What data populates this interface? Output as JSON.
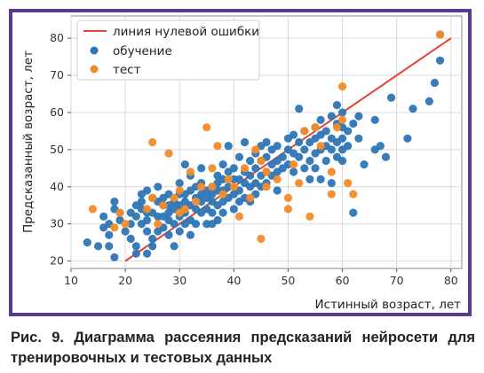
{
  "caption": "Рис. 9. Диаграмма рассеяния предсказаний нейросети для тренировочных и тестовых данных",
  "chart_data": {
    "type": "scatter",
    "xlabel": "Истинный возраст, лет",
    "ylabel": "Предсказанный возраст, лет",
    "xlim": [
      10,
      82
    ],
    "ylim": [
      18,
      86
    ],
    "xticks": [
      10,
      20,
      30,
      40,
      50,
      60,
      70,
      80
    ],
    "yticks": [
      20,
      30,
      40,
      50,
      60,
      70,
      80
    ],
    "grid": true,
    "legend_position": "top-left",
    "line": {
      "name": "линия нулевой ошибки",
      "color": "#e8412f",
      "x": [
        20,
        80
      ],
      "y": [
        20,
        80
      ]
    },
    "series": [
      {
        "name": "обучение",
        "color": "#2e75b6",
        "points": [
          [
            13,
            25
          ],
          [
            15,
            24
          ],
          [
            16,
            32
          ],
          [
            16,
            29
          ],
          [
            17,
            30
          ],
          [
            17,
            27
          ],
          [
            17,
            24
          ],
          [
            18,
            34
          ],
          [
            18,
            36
          ],
          [
            18,
            21
          ],
          [
            19,
            31
          ],
          [
            19,
            33
          ],
          [
            20,
            28
          ],
          [
            21,
            30
          ],
          [
            21,
            33
          ],
          [
            21,
            26
          ],
          [
            22,
            35
          ],
          [
            22,
            32
          ],
          [
            22,
            24
          ],
          [
            22,
            22
          ],
          [
            23,
            38
          ],
          [
            23,
            36
          ],
          [
            23,
            34
          ],
          [
            23,
            30
          ],
          [
            24,
            39
          ],
          [
            24,
            33
          ],
          [
            24,
            31
          ],
          [
            24,
            28
          ],
          [
            24,
            22
          ],
          [
            25,
            37
          ],
          [
            25,
            33
          ],
          [
            25,
            26
          ],
          [
            25,
            24
          ],
          [
            26,
            40
          ],
          [
            26,
            36
          ],
          [
            26,
            32
          ],
          [
            26,
            28
          ],
          [
            27,
            37
          ],
          [
            27,
            35
          ],
          [
            27,
            32
          ],
          [
            27,
            29
          ],
          [
            28,
            38
          ],
          [
            28,
            35
          ],
          [
            28,
            33
          ],
          [
            28,
            31
          ],
          [
            28,
            27
          ],
          [
            29,
            36
          ],
          [
            29,
            34
          ],
          [
            29,
            30
          ],
          [
            29,
            24
          ],
          [
            30,
            41
          ],
          [
            30,
            38
          ],
          [
            30,
            35
          ],
          [
            30,
            32
          ],
          [
            30,
            28
          ],
          [
            31,
            46
          ],
          [
            31,
            38
          ],
          [
            31,
            36
          ],
          [
            31,
            33
          ],
          [
            31,
            30
          ],
          [
            32,
            43
          ],
          [
            32,
            39
          ],
          [
            32,
            35
          ],
          [
            32,
            31
          ],
          [
            32,
            27
          ],
          [
            33,
            40
          ],
          [
            33,
            37
          ],
          [
            33,
            34
          ],
          [
            33,
            30
          ],
          [
            34,
            41
          ],
          [
            34,
            38
          ],
          [
            34,
            36
          ],
          [
            34,
            33
          ],
          [
            34,
            45
          ],
          [
            35,
            39
          ],
          [
            35,
            37
          ],
          [
            35,
            34
          ],
          [
            35,
            30
          ],
          [
            36,
            40
          ],
          [
            36,
            38
          ],
          [
            36,
            36
          ],
          [
            36,
            33
          ],
          [
            36,
            30
          ],
          [
            37,
            43
          ],
          [
            37,
            41
          ],
          [
            37,
            39
          ],
          [
            37,
            35
          ],
          [
            37,
            31
          ],
          [
            38,
            46
          ],
          [
            38,
            42
          ],
          [
            38,
            39
          ],
          [
            38,
            36
          ],
          [
            38,
            33
          ],
          [
            39,
            51
          ],
          [
            39,
            44
          ],
          [
            39,
            40
          ],
          [
            39,
            37
          ],
          [
            40,
            45
          ],
          [
            40,
            42
          ],
          [
            40,
            38
          ],
          [
            40,
            34
          ],
          [
            41,
            48
          ],
          [
            41,
            42
          ],
          [
            41,
            39
          ],
          [
            41,
            36
          ],
          [
            42,
            52
          ],
          [
            42,
            44
          ],
          [
            42,
            41
          ],
          [
            42,
            37
          ],
          [
            43,
            47
          ],
          [
            43,
            43
          ],
          [
            43,
            40
          ],
          [
            43,
            36
          ],
          [
            44,
            49
          ],
          [
            44,
            45
          ],
          [
            44,
            41
          ],
          [
            44,
            38
          ],
          [
            45,
            51
          ],
          [
            45,
            47
          ],
          [
            45,
            43
          ],
          [
            45,
            40
          ],
          [
            46,
            52
          ],
          [
            46,
            48
          ],
          [
            46,
            44
          ],
          [
            46,
            41
          ],
          [
            47,
            50
          ],
          [
            47,
            46
          ],
          [
            47,
            43
          ],
          [
            48,
            51
          ],
          [
            48,
            47
          ],
          [
            48,
            44
          ],
          [
            48,
            39
          ],
          [
            49,
            48
          ],
          [
            49,
            45
          ],
          [
            50,
            50
          ],
          [
            50,
            53
          ],
          [
            50,
            46
          ],
          [
            51,
            54
          ],
          [
            51,
            49
          ],
          [
            51,
            44
          ],
          [
            52,
            52
          ],
          [
            52,
            48
          ],
          [
            52,
            61
          ],
          [
            53,
            55
          ],
          [
            53,
            50
          ],
          [
            53,
            45
          ],
          [
            54,
            52
          ],
          [
            54,
            47
          ],
          [
            54,
            42
          ],
          [
            55,
            56
          ],
          [
            55,
            53
          ],
          [
            55,
            49
          ],
          [
            55,
            45
          ],
          [
            56,
            58
          ],
          [
            56,
            54
          ],
          [
            56,
            50
          ],
          [
            56,
            42
          ],
          [
            57,
            55
          ],
          [
            57,
            51
          ],
          [
            57,
            47
          ],
          [
            58,
            59
          ],
          [
            58,
            53
          ],
          [
            58,
            50
          ],
          [
            58,
            41
          ],
          [
            59,
            62
          ],
          [
            59,
            57
          ],
          [
            59,
            52
          ],
          [
            59,
            48
          ],
          [
            60,
            60
          ],
          [
            60,
            56
          ],
          [
            60,
            53
          ],
          [
            60,
            50
          ],
          [
            60,
            47
          ],
          [
            61,
            55
          ],
          [
            61,
            51
          ],
          [
            62,
            57
          ],
          [
            62,
            33
          ],
          [
            63,
            53
          ],
          [
            63,
            59
          ],
          [
            64,
            46
          ],
          [
            66,
            58
          ],
          [
            66,
            50
          ],
          [
            67,
            51
          ],
          [
            68,
            48
          ],
          [
            69,
            64
          ],
          [
            72,
            53
          ],
          [
            73,
            61
          ],
          [
            76,
            63
          ],
          [
            77,
            68
          ],
          [
            78,
            74
          ],
          [
            78,
            81
          ]
        ]
      },
      {
        "name": "тест",
        "color": "#f28c28",
        "points": [
          [
            14,
            34
          ],
          [
            18,
            29
          ],
          [
            19,
            33
          ],
          [
            20,
            30
          ],
          [
            24,
            34
          ],
          [
            25,
            37
          ],
          [
            25,
            52
          ],
          [
            26,
            30
          ],
          [
            27,
            35
          ],
          [
            28,
            49
          ],
          [
            29,
            37
          ],
          [
            30,
            33
          ],
          [
            30,
            39
          ],
          [
            31,
            34
          ],
          [
            32,
            44
          ],
          [
            33,
            36
          ],
          [
            34,
            40
          ],
          [
            35,
            56
          ],
          [
            36,
            45
          ],
          [
            36,
            40
          ],
          [
            37,
            51
          ],
          [
            38,
            38
          ],
          [
            39,
            42
          ],
          [
            40,
            40
          ],
          [
            41,
            32
          ],
          [
            42,
            45
          ],
          [
            43,
            37
          ],
          [
            44,
            50
          ],
          [
            45,
            47
          ],
          [
            45,
            26
          ],
          [
            46,
            44
          ],
          [
            46,
            40
          ],
          [
            48,
            42
          ],
          [
            50,
            34
          ],
          [
            50,
            37
          ],
          [
            51,
            46
          ],
          [
            52,
            41
          ],
          [
            53,
            55
          ],
          [
            54,
            32
          ],
          [
            55,
            56
          ],
          [
            56,
            51
          ],
          [
            58,
            44
          ],
          [
            58,
            38
          ],
          [
            59,
            56
          ],
          [
            60,
            67
          ],
          [
            60,
            58
          ],
          [
            61,
            41
          ],
          [
            62,
            38
          ],
          [
            78,
            81
          ]
        ]
      }
    ]
  }
}
